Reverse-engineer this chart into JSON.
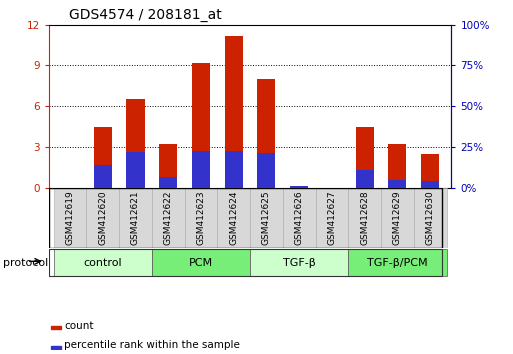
{
  "title": "GDS4574 / 208181_at",
  "samples": [
    "GSM412619",
    "GSM412620",
    "GSM412621",
    "GSM412622",
    "GSM412623",
    "GSM412624",
    "GSM412625",
    "GSM412626",
    "GSM412627",
    "GSM412628",
    "GSM412629",
    "GSM412630"
  ],
  "count_values": [
    0.0,
    4.5,
    6.5,
    3.2,
    9.2,
    11.2,
    8.0,
    0.15,
    0.0,
    4.5,
    3.2,
    2.5
  ],
  "percentile_values": [
    0.0,
    14.0,
    22.0,
    6.5,
    22.5,
    22.5,
    21.0,
    1.0,
    0.0,
    11.0,
    4.5,
    4.0
  ],
  "bar_color_red": "#cc2200",
  "bar_color_blue": "#3333cc",
  "ylim_left": [
    0,
    12
  ],
  "ylim_right": [
    0,
    100
  ],
  "yticks_left": [
    0,
    3,
    6,
    9,
    12
  ],
  "yticks_right": [
    0,
    25,
    50,
    75,
    100
  ],
  "ytick_labels_right": [
    "0%",
    "25%",
    "50%",
    "75%",
    "100%"
  ],
  "protocols": [
    {
      "label": "control",
      "start": 0,
      "end": 3,
      "color": "#ccffcc"
    },
    {
      "label": "PCM",
      "start": 3,
      "end": 6,
      "color": "#77ee77"
    },
    {
      "label": "TGF-β",
      "start": 6,
      "end": 9,
      "color": "#ccffcc"
    },
    {
      "label": "TGF-β/PCM",
      "start": 9,
      "end": 12,
      "color": "#77ee77"
    }
  ],
  "protocol_label": "protocol",
  "legend_count": "count",
  "legend_percentile": "percentile rank within the sample",
  "bar_width": 0.55,
  "title_fontsize": 10,
  "tick_fontsize": 7.5,
  "label_fontsize": 6.5,
  "proto_fontsize": 8,
  "legend_fontsize": 7.5,
  "background_color": "#ffffff",
  "label_box_color": "#d8d8d8",
  "label_box_edge": "#aaaaaa"
}
